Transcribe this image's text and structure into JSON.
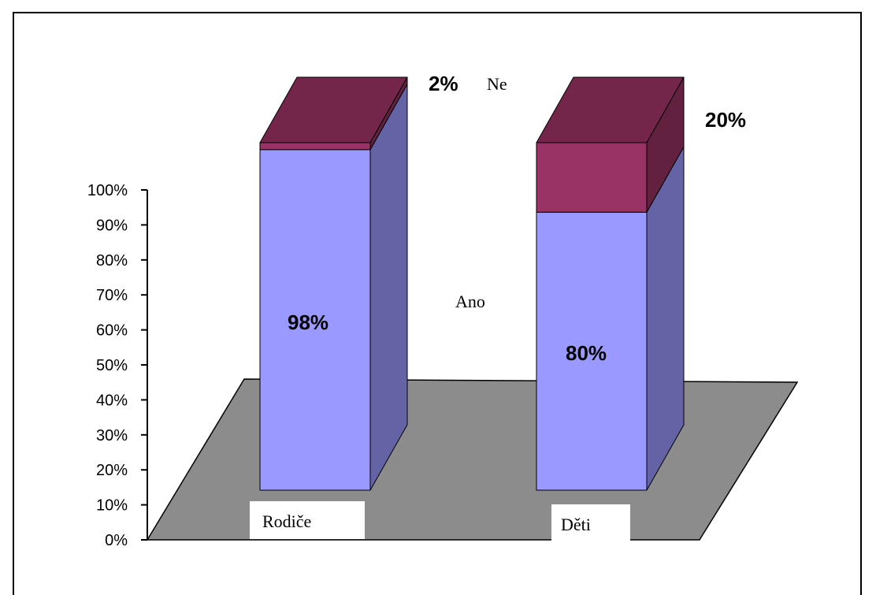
{
  "chart_data": {
    "type": "bar",
    "stacked": true,
    "three_d": true,
    "categories": [
      "Rodiče",
      "Děti"
    ],
    "series": [
      {
        "name": "Ano",
        "values": [
          98,
          80
        ],
        "labels": [
          "98%",
          "80%"
        ]
      },
      {
        "name": "Ne",
        "values": [
          2,
          20
        ],
        "labels": [
          "2%",
          "20%"
        ]
      }
    ],
    "yticks": [
      "0%",
      "10%",
      "20%",
      "30%",
      "40%",
      "50%",
      "60%",
      "70%",
      "80%",
      "90%",
      "100%"
    ],
    "ylim": [
      0,
      100
    ],
    "title": "",
    "xlabel": "",
    "ylabel": "",
    "grid": false,
    "legend": "inline series labels"
  },
  "colors": {
    "ano_front": "#9999ff",
    "ano_side": "#6363a6",
    "ne_front": "#993366",
    "ne_side": "#62213f",
    "ne_top": "#74264a",
    "floor": "#8c8c8c"
  }
}
